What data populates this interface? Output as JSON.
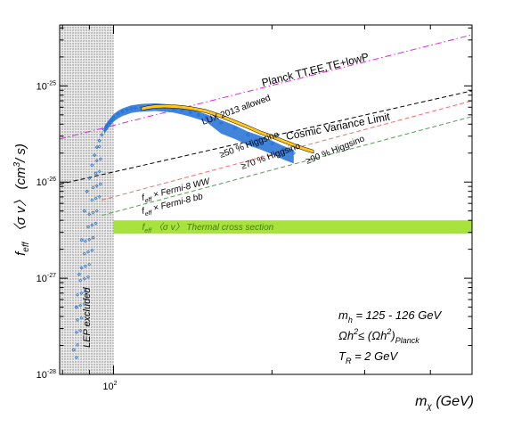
{
  "chart_data": {
    "type": "scatter",
    "x_scale": "log",
    "y_scale": "log",
    "xlim": [
      79,
      480
    ],
    "ylim": [
      1e-28,
      4.3e-25
    ],
    "x_ticks": [
      {
        "value": 100,
        "label": "10",
        "exp": "2"
      }
    ],
    "y_ticks": [
      {
        "value": 1e-28,
        "label": "10",
        "exp": "-28"
      },
      {
        "value": 1e-27,
        "label": "10",
        "exp": "-27"
      },
      {
        "value": 1e-26,
        "label": "10",
        "exp": "-26"
      },
      {
        "value": 1e-25,
        "label": "10",
        "exp": "-25"
      }
    ],
    "xlabel": {
      "base": "m",
      "sub": "χ",
      "rest": " (GeV)"
    },
    "ylabel": {
      "f": "f",
      "sub": "eff",
      "mid": " 〈σ v〉 (cm",
      "sup": "3",
      "end": "/ s)"
    },
    "excluded_region": {
      "label": "LEP excluded",
      "x_max": 100
    },
    "thermal_band": {
      "label": "f",
      "label_sub": "eff",
      "label_rest": " 〈σ v〉  Thermal cross section",
      "y_range": [
        2.9e-27,
        4e-27
      ],
      "color": "#a8e33d"
    },
    "lines": [
      {
        "label": "Planck TT,EE,TE+lowP",
        "color": "#e026e0",
        "style": "dashdot",
        "points": [
          [
            79,
            2.8e-26
          ],
          [
            480,
            3.4e-25
          ]
        ]
      },
      {
        "label": "Cosmic Variance Limit",
        "color": "#000000",
        "style": "dashed",
        "points": [
          [
            79,
            9.5e-27
          ],
          [
            480,
            8.9e-26
          ]
        ]
      },
      {
        "label_prefix": "f",
        "label_sub": "eff",
        "label": "× Fermi-8 WW",
        "color": "#f07070",
        "style": "dashed",
        "points": [
          [
            95,
            6.5e-27
          ],
          [
            480,
            7e-26
          ]
        ]
      },
      {
        "label_prefix": "f",
        "label_sub": "eff",
        "label": "× Fermi-8 bb",
        "color": "#5a9e5a",
        "style": "dashed",
        "points": [
          [
            95,
            4.5e-27
          ],
          [
            480,
            4.8e-26
          ]
        ]
      }
    ],
    "series": [
      {
        "name": "Higgsino",
        "color": "#1f6fd6",
        "x": [
          84,
          85,
          86,
          87,
          88,
          89,
          90,
          91,
          92,
          93,
          94,
          95,
          96,
          97,
          98,
          99,
          100,
          102,
          104,
          106,
          108,
          110,
          113,
          116,
          120,
          125,
          130,
          135,
          140,
          145,
          150,
          160,
          170,
          180,
          190,
          200,
          210,
          220
        ],
        "y": [
          1.8e-28,
          5e-28,
          1.1e-27,
          2.5e-27,
          5e-27,
          8e-27,
          1.1e-26,
          1.5e-26,
          1.9e-26,
          2.3e-26,
          2.7e-26,
          3.1e-26,
          3.5e-26,
          3.8e-26,
          4.1e-26,
          4.4e-26,
          4.7e-26,
          5.1e-26,
          5.4e-26,
          5.6e-26,
          5.8e-26,
          5.9e-26,
          6e-26,
          6.05e-26,
          6.1e-26,
          6e-26,
          5.85e-26,
          5.6e-26,
          5.3e-26,
          5e-26,
          4.7e-26,
          4.1e-26,
          3.6e-26,
          3.1e-26,
          2.8e-26,
          2.5e-26,
          2.2e-26,
          2e-26
        ]
      },
      {
        "name": "LUX 2013 allowed",
        "color": "#ffc61a",
        "x": [
          113,
          116,
          120,
          125,
          130,
          135,
          140,
          145,
          150,
          160,
          170,
          180,
          190,
          200,
          210,
          220,
          230,
          240
        ],
        "y": [
          5.7e-26,
          5.9e-26,
          6.05e-26,
          6.1e-26,
          6.05e-26,
          5.95e-26,
          5.8e-26,
          5.6e-26,
          5.4e-26,
          4.8e-26,
          4.2e-26,
          3.7e-26,
          3.25e-26,
          2.95e-26,
          2.65e-26,
          2.4e-26,
          2.2e-26,
          2.05e-26
        ]
      }
    ],
    "text_annotations": [
      {
        "text": "≥50 % Higgsino",
        "color": "#1f6fd6"
      },
      {
        "text": "≥70 % Higgsino",
        "color": "#1f6fd6"
      },
      {
        "text": "≥90 % Higgsino",
        "color": "#1f6fd6"
      },
      {
        "text": "LUX 2013 allowed",
        "color": "#ffc61a"
      }
    ],
    "info_box": {
      "line1_base": "m",
      "line1_sub": "h",
      "line1_rest": " = 125 - 126 GeV",
      "line2_a": "Ωh",
      "line2_sup1": "2",
      "line2_mid": "≤ (Ωh",
      "line2_sup2": "2",
      "line2_close": ")",
      "line2_sub": "Planck",
      "line3_base": "T",
      "line3_sub": "R",
      "line3_rest": " = 2 GeV"
    }
  }
}
